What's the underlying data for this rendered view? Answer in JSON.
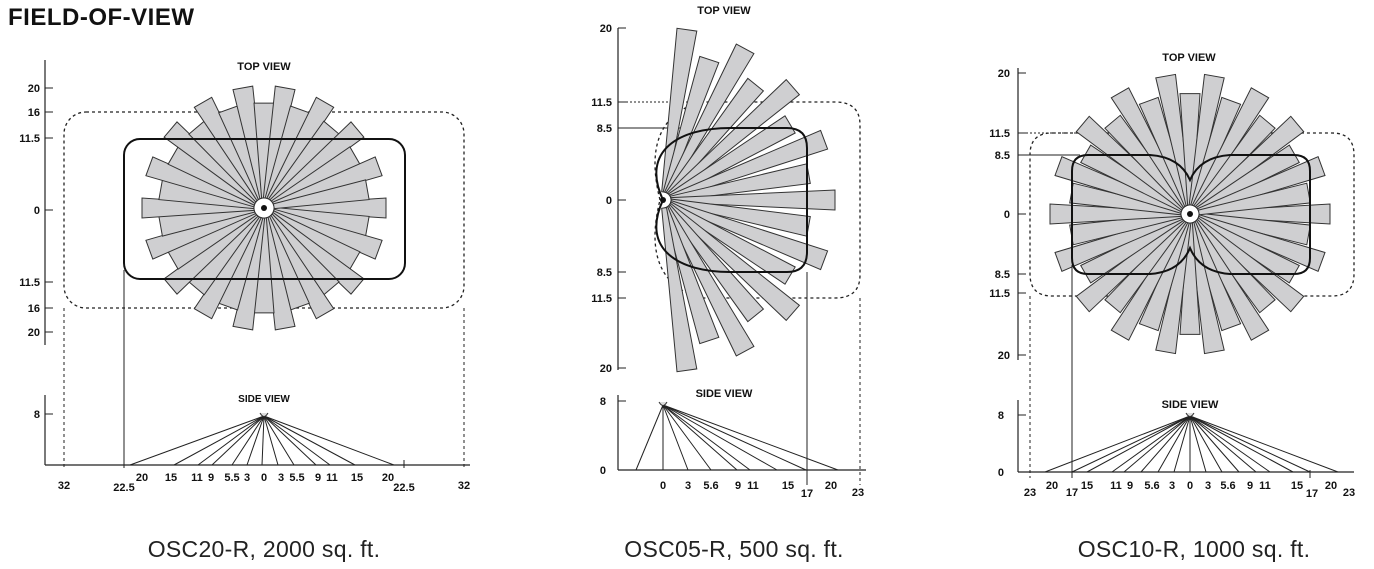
{
  "page": {
    "title": "FIELD-OF-VIEW"
  },
  "diagrams": [
    {
      "caption": "OSC20-R, 2000 sq. ft.",
      "top_label": "TOP VIEW",
      "side_label": "SIDE VIEW",
      "top_y_ticks": [
        "20",
        "16",
        "11.5",
        "0",
        "11.5",
        "16",
        "20"
      ],
      "side_y_ticks": [
        "8"
      ],
      "side_x_ticks": [
        "32",
        "22.5",
        "20",
        "15",
        "11",
        "9",
        "5.5",
        "3",
        "0",
        "3",
        "5.5",
        "9",
        "11",
        "15",
        "20",
        "22.5",
        "32"
      ]
    },
    {
      "caption": "OSC05-R, 500 sq. ft.",
      "top_label": "TOP VIEW",
      "side_label": "SIDE VIEW",
      "top_y_ticks": [
        "20",
        "11.5",
        "8.5",
        "0",
        "8.5",
        "11.5",
        "20"
      ],
      "side_y_ticks": [
        "8",
        "0"
      ],
      "side_x_ticks": [
        "0",
        "3",
        "5.6",
        "9",
        "11",
        "15",
        "17",
        "20",
        "23"
      ]
    },
    {
      "caption": "OSC10-R, 1000 sq. ft.",
      "top_label": "TOP VIEW",
      "side_label": "SIDE VIEW",
      "top_y_ticks": [
        "20",
        "11.5",
        "8.5",
        "0",
        "8.5",
        "11.5",
        "20"
      ],
      "side_y_ticks": [
        "8",
        "0"
      ],
      "side_x_ticks": [
        "23",
        "20",
        "17",
        "15",
        "11",
        "9",
        "5.6",
        "3",
        "0",
        "3",
        "5.6",
        "9",
        "11",
        "15",
        "17",
        "20",
        "23"
      ]
    }
  ]
}
